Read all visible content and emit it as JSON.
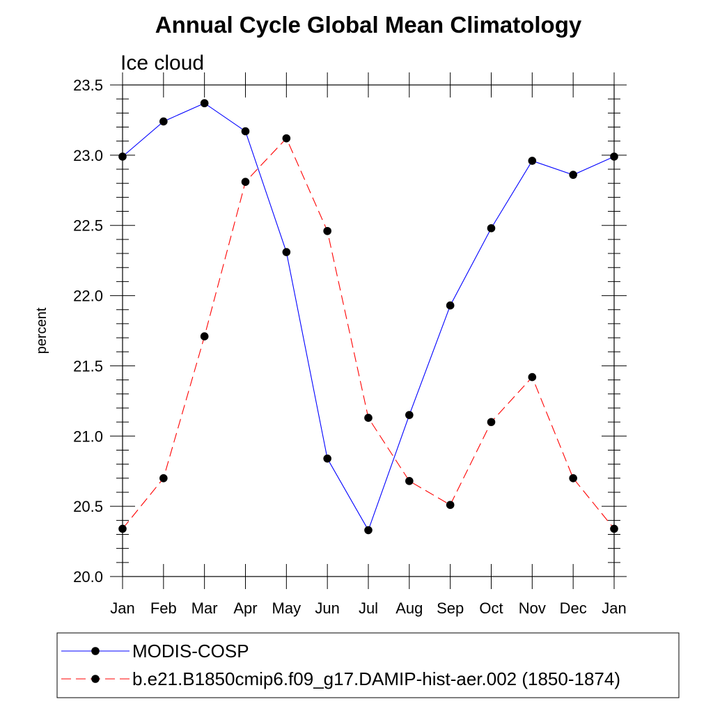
{
  "chart_data": {
    "type": "line",
    "title": "Annual Cycle Global Mean Climatology",
    "subtitle": "Ice cloud",
    "ylabel": "percent",
    "xlabel": "",
    "ylim": [
      20.0,
      23.5
    ],
    "yticks": [
      "20.0",
      "20.5",
      "21.0",
      "21.5",
      "22.0",
      "22.5",
      "23.0",
      "23.5"
    ],
    "categories": [
      "Jan",
      "Feb",
      "Mar",
      "Apr",
      "May",
      "Jun",
      "Jul",
      "Aug",
      "Sep",
      "Oct",
      "Nov",
      "Dec",
      "Jan"
    ],
    "grid": false,
    "legend_position": "bottom",
    "series": [
      {
        "name": "MODIS-COSP",
        "color": "#0000ff",
        "line_style": "solid",
        "marker": "filled-circle",
        "values": [
          22.99,
          23.24,
          23.37,
          23.17,
          22.31,
          20.84,
          20.33,
          21.15,
          21.93,
          22.48,
          22.96,
          22.86,
          22.99
        ]
      },
      {
        "name": "b.e21.B1850cmip6.f09_g17.DAMIP-hist-aer.002 (1850-1874)",
        "color": "#ff0000",
        "line_style": "dashed",
        "marker": "filled-circle",
        "values": [
          20.34,
          20.7,
          21.71,
          22.81,
          23.12,
          22.46,
          21.13,
          20.68,
          20.51,
          21.1,
          21.42,
          20.7,
          20.34
        ]
      }
    ]
  }
}
